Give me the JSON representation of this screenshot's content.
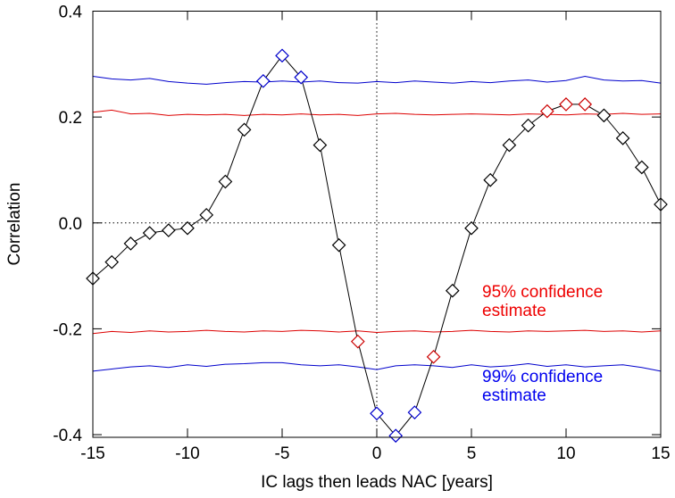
{
  "chart_data": {
    "type": "line",
    "xlabel": "IC lags then leads NAC [years]",
    "ylabel": "Correlation",
    "x": [
      -15,
      -14,
      -13,
      -12,
      -11,
      -10,
      -9,
      -8,
      -7,
      -6,
      -5,
      -4,
      -3,
      -2,
      -1,
      0,
      1,
      2,
      3,
      4,
      5,
      6,
      7,
      8,
      9,
      10,
      11,
      12,
      13,
      14,
      15
    ],
    "values": [
      -0.105,
      -0.074,
      -0.039,
      -0.019,
      -0.014,
      -0.01,
      0.015,
      0.078,
      0.176,
      0.268,
      0.316,
      0.275,
      0.147,
      -0.042,
      -0.224,
      -0.36,
      -0.402,
      -0.358,
      -0.253,
      -0.128,
      -0.01,
      0.081,
      0.147,
      0.184,
      0.211,
      0.224,
      0.224,
      0.203,
      0.16,
      0.105,
      0.035
    ],
    "color": "#000000",
    "marker_colors": [
      "#000000",
      "#000000",
      "#000000",
      "#000000",
      "#000000",
      "#000000",
      "#000000",
      "#000000",
      "#000000",
      "#0000cc",
      "#0000cc",
      "#0000cc",
      "#000000",
      "#000000",
      "#cc0000",
      "#0000cc",
      "#0000cc",
      "#0000cc",
      "#cc0000",
      "#000000",
      "#000000",
      "#000000",
      "#000000",
      "#000000",
      "#cc0000",
      "#cc0000",
      "#cc0000",
      "#000000",
      "#000000",
      "#000000",
      "#000000"
    ],
    "reference_lines": [
      {
        "color": "#0000cc",
        "values": [
          0.277,
          0.272,
          0.27,
          0.273,
          0.267,
          0.264,
          0.262,
          0.265,
          0.267,
          0.266,
          0.268,
          0.266,
          0.268,
          0.265,
          0.264,
          0.267,
          0.265,
          0.268,
          0.266,
          0.264,
          0.267,
          0.265,
          0.268,
          0.27,
          0.266,
          0.269,
          0.277,
          0.27,
          0.268,
          0.269,
          0.264
        ]
      },
      {
        "color": "#dd0000",
        "values": [
          0.209,
          0.213,
          0.206,
          0.207,
          0.203,
          0.205,
          0.204,
          0.205,
          0.203,
          0.205,
          0.204,
          0.206,
          0.204,
          0.205,
          0.203,
          0.206,
          0.207,
          0.205,
          0.204,
          0.205,
          0.206,
          0.205,
          0.204,
          0.206,
          0.205,
          0.204,
          0.206,
          0.205,
          0.207,
          0.205,
          0.206
        ]
      },
      {
        "color": "#dd0000",
        "values": [
          -0.209,
          -0.205,
          -0.207,
          -0.204,
          -0.206,
          -0.205,
          -0.203,
          -0.205,
          -0.206,
          -0.204,
          -0.205,
          -0.203,
          -0.204,
          -0.206,
          -0.204,
          -0.207,
          -0.205,
          -0.204,
          -0.206,
          -0.205,
          -0.203,
          -0.205,
          -0.206,
          -0.204,
          -0.205,
          -0.204,
          -0.203,
          -0.205,
          -0.204,
          -0.206,
          -0.204
        ]
      },
      {
        "color": "#0000cc",
        "values": [
          -0.28,
          -0.276,
          -0.272,
          -0.27,
          -0.273,
          -0.268,
          -0.271,
          -0.267,
          -0.266,
          -0.264,
          -0.264,
          -0.268,
          -0.27,
          -0.268,
          -0.272,
          -0.277,
          -0.27,
          -0.268,
          -0.27,
          -0.273,
          -0.268,
          -0.272,
          -0.27,
          -0.266,
          -0.271,
          -0.268,
          -0.272,
          -0.27,
          -0.268,
          -0.273,
          -0.28
        ]
      }
    ],
    "annotations": [
      {
        "lines": [
          "95% confidence",
          "estimate"
        ],
        "color": "#ee0000"
      },
      {
        "lines": [
          "99% confidence",
          "estimate"
        ],
        "color": "#0000ee"
      }
    ],
    "xlim": [
      -15,
      15
    ],
    "ylim": [
      -0.405,
      0.4
    ],
    "xticks": [
      -15,
      -10,
      -5,
      0,
      5,
      10,
      15
    ],
    "yticks": [
      0.4,
      0.2,
      {
        "value": 0,
        "label": "0.0"
      },
      -0.2,
      -0.4
    ],
    "zero_lines": true
  }
}
